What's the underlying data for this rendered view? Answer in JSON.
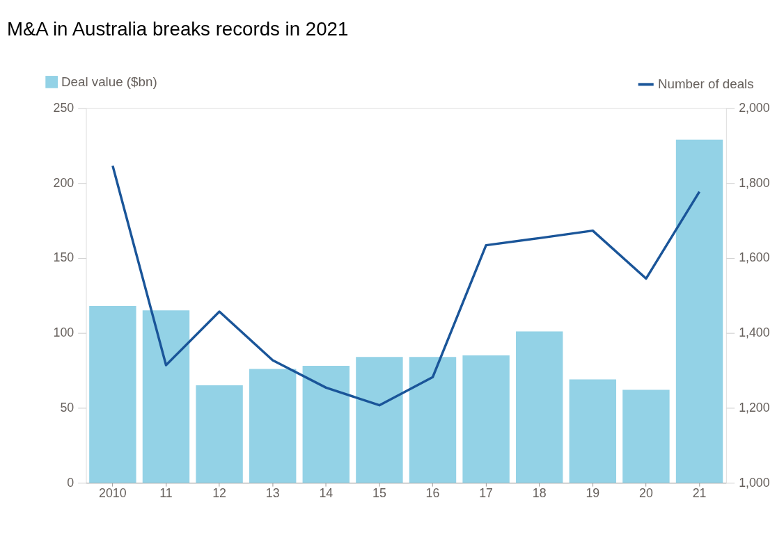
{
  "chart_data": {
    "type": "bar",
    "title": "M&A in Australia breaks records in 2021",
    "categories": [
      "2010",
      "11",
      "12",
      "13",
      "14",
      "15",
      "16",
      "17",
      "18",
      "19",
      "20",
      "21"
    ],
    "series": [
      {
        "name": "Deal value ($bn)",
        "color": "#93d2e6",
        "values": [
          118,
          115,
          65,
          76,
          78,
          84,
          84,
          85,
          101,
          69,
          62,
          229
        ]
      },
      {
        "name": "Number of deals",
        "type": "line",
        "axis": "y2",
        "color": "#1a5599",
        "values": [
          1846,
          1314,
          1457,
          1327,
          1254,
          1207,
          1282,
          1634,
          1653,
          1673,
          1545,
          1777
        ]
      }
    ],
    "ylim": [
      0,
      250
    ],
    "yticks": [
      0,
      50,
      100,
      150,
      200,
      250
    ],
    "y2lim": [
      1000,
      2000
    ],
    "y2ticks": [
      {
        "value": 1000,
        "label": "1,000"
      },
      {
        "value": 1200,
        "label": "1,200"
      },
      {
        "value": 1400,
        "label": "1,400"
      },
      {
        "value": 1600,
        "label": "1,600"
      },
      {
        "value": 1800,
        "label": "1,800"
      },
      {
        "value": 2000,
        "label": "2,000"
      }
    ],
    "grid": false,
    "legend": "top",
    "line_style": "solid"
  }
}
